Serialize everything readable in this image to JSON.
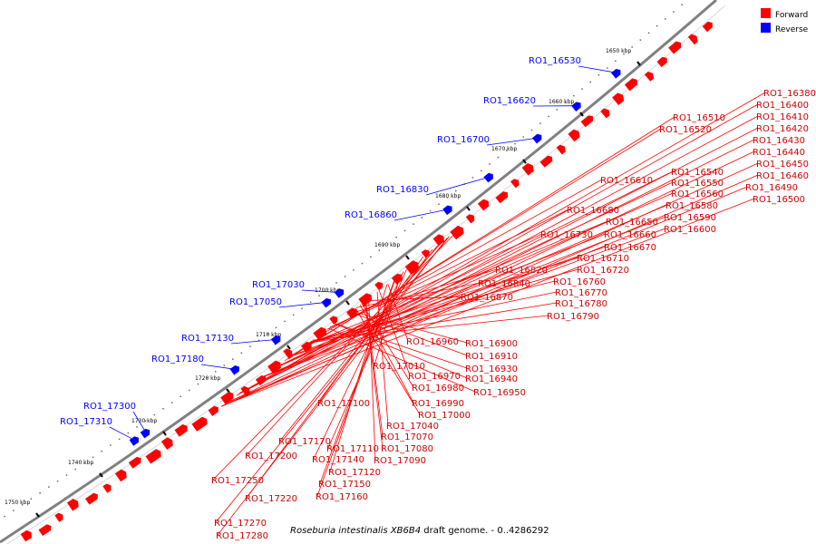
{
  "legend": {
    "forward": {
      "label": "Forward",
      "color": "#ff0000"
    },
    "reverse": {
      "label": "Reverse",
      "color": "#0000ff"
    }
  },
  "caption": {
    "species": "Roseburia intestinalis XB6B4",
    "rest": " draft genome. - 0..4286292"
  },
  "ticks": [
    "1650 kbp",
    "1660 kbp",
    "1670 kbp",
    "1680 kbp",
    "1690 kbp",
    "1700 kbp",
    "1710 kbp",
    "1720 kbp",
    "1730 kbp",
    "1740 kbp",
    "1750 kbp"
  ],
  "reverse_genes": [
    "RO1_16530",
    "RO1_16620",
    "RO1_16700",
    "RO1_16830",
    "RO1_16860",
    "RO1_17030",
    "RO1_17050",
    "RO1_17130",
    "RO1_17180",
    "RO1_17300",
    "RO1_17310"
  ],
  "forward_genes": [
    "RO1_16380",
    "RO1_16400",
    "RO1_16410",
    "RO1_16420",
    "RO1_16430",
    "RO1_16440",
    "RO1_16450",
    "RO1_16460",
    "RO1_16490",
    "RO1_16500",
    "RO1_16510",
    "RO1_16520",
    "RO1_16540",
    "RO1_16550",
    "RO1_16560",
    "RO1_16580",
    "RO1_16590",
    "RO1_16600",
    "RO1_16610",
    "RO1_16650",
    "RO1_16660",
    "RO1_16670",
    "RO1_16680",
    "RO1_16710",
    "RO1_16720",
    "RO1_16730",
    "RO1_16760",
    "RO1_16770",
    "RO1_16780",
    "RO1_16790",
    "RO1_16820",
    "RO1_16840",
    "RO1_16870",
    "RO1_16900",
    "RO1_16910",
    "RO1_16930",
    "RO1_16940",
    "RO1_16950",
    "RO1_16960",
    "RO1_16970",
    "RO1_16980",
    "RO1_16990",
    "RO1_17000",
    "RO1_17010",
    "RO1_17040",
    "RO1_17070",
    "RO1_17080",
    "RO1_17090",
    "RO1_17100",
    "RO1_17110",
    "RO1_17120",
    "RO1_17140",
    "RO1_17150",
    "RO1_17160",
    "RO1_17170",
    "RO1_17200",
    "RO1_17220",
    "RO1_17250",
    "RO1_17270",
    "RO1_17280"
  ]
}
